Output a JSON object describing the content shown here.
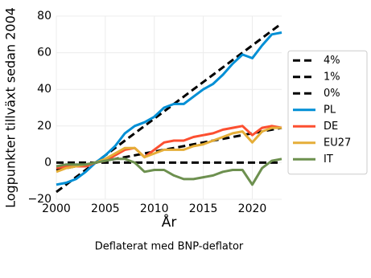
{
  "chart_data": {
    "type": "line",
    "x": [
      2000,
      2001,
      2002,
      2003,
      2004,
      2005,
      2006,
      2007,
      2008,
      2009,
      2010,
      2011,
      2012,
      2013,
      2014,
      2015,
      2016,
      2017,
      2018,
      2019,
      2020,
      2021,
      2022,
      2023
    ],
    "series": [
      {
        "name": "4%",
        "color": "#000000",
        "linestyle": "dashed",
        "values": [
          -16,
          -12,
          -8,
          -4,
          0,
          4,
          8,
          12,
          16,
          20,
          24,
          28,
          32,
          36,
          40,
          44,
          48,
          52,
          56,
          60,
          64,
          68,
          72,
          76
        ]
      },
      {
        "name": "1%",
        "color": "#000000",
        "linestyle": "dashed",
        "values": [
          -4,
          -3,
          -2,
          -1,
          0,
          1,
          2,
          3,
          4,
          5,
          6,
          7,
          8,
          9,
          10,
          11,
          12,
          13,
          14,
          15,
          16,
          17,
          18,
          19
        ]
      },
      {
        "name": "0%",
        "color": "#000000",
        "linestyle": "dashed",
        "values": [
          0,
          0,
          0,
          0,
          0,
          0,
          0,
          0,
          0,
          0,
          0,
          0,
          0,
          0,
          0,
          0,
          0,
          0,
          0,
          0,
          0,
          0,
          0,
          0
        ]
      },
      {
        "name": "PL",
        "color": "#008fd5",
        "linestyle": "solid",
        "values": [
          -12,
          -11,
          -9,
          -5,
          0,
          4,
          9,
          16,
          20,
          22,
          25,
          30,
          32,
          32,
          36,
          40,
          43,
          48,
          54,
          59,
          57,
          64,
          70,
          71
        ]
      },
      {
        "name": "DE",
        "color": "#fc4f30",
        "linestyle": "solid",
        "values": [
          -3,
          -2,
          -2,
          -2,
          0,
          1,
          4,
          7,
          8,
          3,
          7,
          11,
          12,
          12,
          14,
          15,
          16,
          18,
          19,
          20,
          15,
          19,
          20,
          19
        ]
      },
      {
        "name": "EU27",
        "color": "#e5ae38",
        "linestyle": "solid",
        "values": [
          -5,
          -3,
          -2,
          -1,
          0,
          2,
          5,
          8,
          8,
          3,
          5,
          7,
          7,
          7,
          9,
          10,
          12,
          14,
          16,
          17,
          11,
          17,
          19,
          19
        ]
      },
      {
        "name": "IT",
        "color": "#6d904f",
        "linestyle": "solid",
        "values": [
          -2,
          -1,
          -1,
          -1,
          0,
          1,
          2,
          2,
          0,
          -5,
          -4,
          -4,
          -7,
          -9,
          -9,
          -8,
          -7,
          -5,
          -4,
          -4,
          -12,
          -3,
          1,
          2
        ]
      }
    ],
    "xlim": [
      2000,
      2023
    ],
    "xticks": [
      2000,
      2005,
      2010,
      2015,
      2020
    ],
    "ylim": [
      -20,
      80
    ],
    "yticks": [
      {
        "value": -20,
        "label": "−20"
      },
      0,
      20,
      40,
      60,
      80
    ],
    "xlabel": "År",
    "ylabel": "Logpunkter tillväxt sedan 2004",
    "caption": "Deflaterat med BNP-deflator",
    "grid": true,
    "legend": "right"
  }
}
